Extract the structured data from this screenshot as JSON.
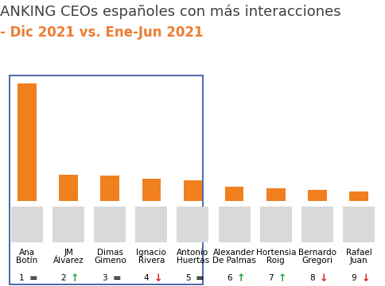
{
  "chart_data": {
    "type": "bar",
    "title": "ANKING CEOs españoles con más interacciones",
    "subtitle": "- Dic 2021 vs. Ene-Jun 2021",
    "categories": [
      "Ana Botín",
      "JM Álvarez",
      "Dimas Gimeno",
      "Ignacio Rivera",
      "Antonio Huertas",
      "Alexander De Palmas",
      "Hortensia Roig",
      "Bernardo Gregori",
      "Rafael Juan"
    ],
    "values": [
      140,
      31,
      30,
      27,
      25,
      17,
      15,
      13,
      11
    ],
    "color": "#f07f1e",
    "ylim": [
      0,
      145
    ],
    "tick_labels": false,
    "grid": false,
    "ranks": [
      1,
      2,
      3,
      4,
      5,
      6,
      7,
      8,
      9
    ],
    "rank_changes": [
      "=",
      "↑",
      "=",
      "↓",
      "=",
      "↑",
      "↑",
      "↓",
      "↓"
    ]
  }
}
